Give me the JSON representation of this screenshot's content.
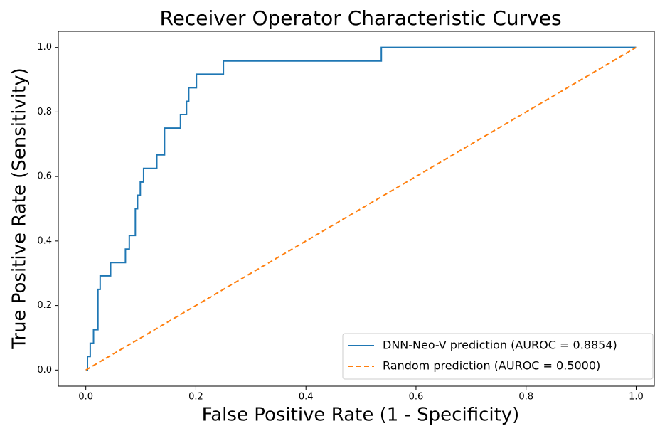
{
  "chart_data": {
    "type": "line",
    "title": "Receiver Operator Characteristic Curves",
    "xlabel": "False Positive Rate (1 - Specificity)",
    "ylabel": "True Positive Rate (Sensitivity)",
    "xlim": [
      -0.05,
      1.033
    ],
    "ylim": [
      -0.05,
      1.05
    ],
    "xticks": [
      {
        "value": 0,
        "label": "0.0"
      },
      0.2,
      0.4,
      0.6,
      0.8,
      {
        "value": 1,
        "label": "1.0"
      }
    ],
    "yticks": [
      {
        "value": 0,
        "label": "0.0"
      },
      0.2,
      0.4,
      0.6,
      0.8,
      {
        "value": 1,
        "label": "1.0"
      }
    ],
    "legend": "lower right",
    "series": [
      {
        "name": "DNN-Neo-V prediction (AUROC = 0.8854)",
        "color": "#1f77b4",
        "dash": false,
        "x": [
          0,
          0.003,
          0.003,
          0.008,
          0.008,
          0.014,
          0.014,
          0.022,
          0.022,
          0.026,
          0.026,
          0.045,
          0.045,
          0.072,
          0.072,
          0.079,
          0.079,
          0.09,
          0.09,
          0.094,
          0.094,
          0.099,
          0.099,
          0.105,
          0.105,
          0.129,
          0.129,
          0.143,
          0.143,
          0.172,
          0.172,
          0.183,
          0.183,
          0.187,
          0.187,
          0.201,
          0.201,
          0.25,
          0.25,
          0.537,
          0.537,
          1
        ],
        "values": [
          0,
          0,
          0.042,
          0.042,
          0.083,
          0.083,
          0.125,
          0.125,
          0.25,
          0.25,
          0.292,
          0.292,
          0.333,
          0.333,
          0.375,
          0.375,
          0.417,
          0.417,
          0.5,
          0.5,
          0.542,
          0.542,
          0.583,
          0.583,
          0.625,
          0.625,
          0.667,
          0.667,
          0.75,
          0.75,
          0.792,
          0.792,
          0.833,
          0.833,
          0.875,
          0.875,
          0.917,
          0.917,
          0.958,
          0.958,
          1,
          1
        ]
      },
      {
        "name": "Random prediction (AUROC = 0.5000)",
        "color": "#ff7f0e",
        "dash": true,
        "x": [
          0,
          1
        ],
        "values": [
          0,
          1
        ]
      }
    ]
  }
}
